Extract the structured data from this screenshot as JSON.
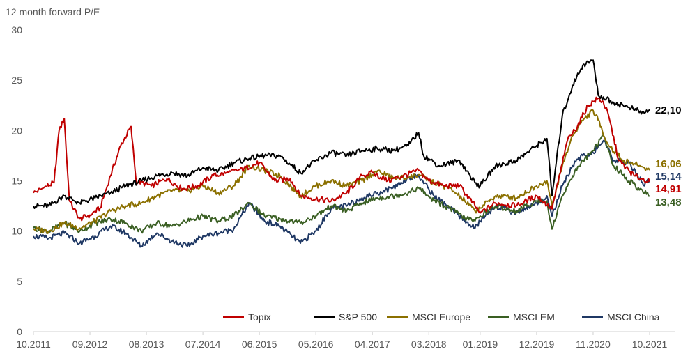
{
  "chart_data": {
    "type": "line",
    "title": "",
    "ylabel": "12 month forward P/E",
    "xlabel": "",
    "ylim": [
      0,
      30
    ],
    "y_ticks": [
      "0",
      "5",
      "10",
      "15",
      "20",
      "25",
      "30"
    ],
    "x_range": [
      "2011-10",
      "2021-10"
    ],
    "x_tick_labels": [
      "10.2011",
      "09.2012",
      "08.2013",
      "07.2014",
      "06.2015",
      "05.2016",
      "04.2017",
      "03.2018",
      "01.2019",
      "12.2019",
      "11.2020",
      "10.2021"
    ],
    "x_tick_dates": [
      "2011-10",
      "2012-09",
      "2013-08",
      "2014-07",
      "2015-06",
      "2016-05",
      "2017-04",
      "2018-03",
      "2019-01",
      "2019-12",
      "2020-11",
      "2021-10"
    ],
    "grid": false,
    "legend_position": "bottom-right",
    "series": [
      {
        "name": "Topix",
        "color": "#c00000",
        "end_label": "14,91",
        "points": [
          [
            "2011-10",
            13.8
          ],
          [
            "2011-12",
            14.3
          ],
          [
            "2012-02",
            14.8
          ],
          [
            "2012-03",
            20.0
          ],
          [
            "2012-04",
            21.2
          ],
          [
            "2012-05",
            13.0
          ],
          [
            "2012-07",
            11.2
          ],
          [
            "2012-09",
            11.6
          ],
          [
            "2012-11",
            12.3
          ],
          [
            "2013-01",
            15.5
          ],
          [
            "2013-03",
            18.5
          ],
          [
            "2013-05",
            20.4
          ],
          [
            "2013-06",
            15.0
          ],
          [
            "2013-09",
            14.5
          ],
          [
            "2013-12",
            15.2
          ],
          [
            "2014-03",
            14.2
          ],
          [
            "2014-06",
            14.5
          ],
          [
            "2014-09",
            15.5
          ],
          [
            "2014-12",
            15.8
          ],
          [
            "2015-03",
            16.2
          ],
          [
            "2015-06",
            16.8
          ],
          [
            "2015-09",
            15.0
          ],
          [
            "2015-12",
            15.2
          ],
          [
            "2016-02",
            13.5
          ],
          [
            "2016-05",
            13.2
          ],
          [
            "2016-08",
            13.0
          ],
          [
            "2016-11",
            13.8
          ],
          [
            "2017-02",
            15.5
          ],
          [
            "2017-04",
            15.8
          ],
          [
            "2017-07",
            15.0
          ],
          [
            "2017-10",
            15.5
          ],
          [
            "2018-01",
            16.0
          ],
          [
            "2018-03",
            15.0
          ],
          [
            "2018-06",
            14.5
          ],
          [
            "2018-09",
            14.5
          ],
          [
            "2018-12",
            12.5
          ],
          [
            "2019-01",
            11.8
          ],
          [
            "2019-04",
            12.8
          ],
          [
            "2019-08",
            12.5
          ],
          [
            "2019-12",
            13.5
          ],
          [
            "2020-03",
            12.2
          ],
          [
            "2020-06",
            19.0
          ],
          [
            "2020-08",
            20.5
          ],
          [
            "2020-10",
            22.5
          ],
          [
            "2020-12",
            23.2
          ],
          [
            "2021-01",
            22.8
          ],
          [
            "2021-02",
            21.5
          ],
          [
            "2021-04",
            17.0
          ],
          [
            "2021-07",
            15.5
          ],
          [
            "2021-10",
            14.91
          ]
        ]
      },
      {
        "name": "S&P 500",
        "color": "#000000",
        "end_label": "22,10",
        "points": [
          [
            "2011-10",
            12.5
          ],
          [
            "2012-01",
            12.5
          ],
          [
            "2012-04",
            13.5
          ],
          [
            "2012-07",
            12.8
          ],
          [
            "2012-10",
            13.3
          ],
          [
            "2013-01",
            13.8
          ],
          [
            "2013-04",
            14.5
          ],
          [
            "2013-07",
            15.0
          ],
          [
            "2013-10",
            15.5
          ],
          [
            "2014-01",
            15.8
          ],
          [
            "2014-04",
            15.5
          ],
          [
            "2014-07",
            16.3
          ],
          [
            "2014-10",
            16.0
          ],
          [
            "2015-01",
            16.8
          ],
          [
            "2015-04",
            17.2
          ],
          [
            "2015-07",
            17.5
          ],
          [
            "2015-10",
            17.5
          ],
          [
            "2016-02",
            15.8
          ],
          [
            "2016-05",
            17.0
          ],
          [
            "2016-08",
            17.8
          ],
          [
            "2016-11",
            17.5
          ],
          [
            "2017-02",
            18.0
          ],
          [
            "2017-05",
            18.2
          ],
          [
            "2017-08",
            18.0
          ],
          [
            "2017-11",
            18.5
          ],
          [
            "2018-01",
            19.8
          ],
          [
            "2018-02",
            17.5
          ],
          [
            "2018-05",
            16.5
          ],
          [
            "2018-09",
            17.0
          ],
          [
            "2018-12",
            14.8
          ],
          [
            "2019-01",
            14.5
          ],
          [
            "2019-04",
            16.5
          ],
          [
            "2019-08",
            17.0
          ],
          [
            "2019-12",
            18.5
          ],
          [
            "2020-02",
            19.2
          ],
          [
            "2020-03",
            13.5
          ],
          [
            "2020-05",
            21.5
          ],
          [
            "2020-07",
            24.5
          ],
          [
            "2020-09",
            26.5
          ],
          [
            "2020-11",
            27.0
          ],
          [
            "2020-12",
            23.5
          ],
          [
            "2021-03",
            22.8
          ],
          [
            "2021-06",
            22.3
          ],
          [
            "2021-09",
            21.7
          ],
          [
            "2021-10",
            22.1
          ]
        ]
      },
      {
        "name": "MSCI Europe",
        "color": "#8b7000",
        "end_label": "16,06",
        "points": [
          [
            "2011-10",
            10.2
          ],
          [
            "2012-01",
            10.0
          ],
          [
            "2012-04",
            10.8
          ],
          [
            "2012-07",
            10.3
          ],
          [
            "2012-10",
            11.0
          ],
          [
            "2013-01",
            12.0
          ],
          [
            "2013-04",
            12.5
          ],
          [
            "2013-07",
            12.8
          ],
          [
            "2013-10",
            13.5
          ],
          [
            "2014-01",
            14.0
          ],
          [
            "2014-04",
            14.0
          ],
          [
            "2014-07",
            14.5
          ],
          [
            "2014-10",
            13.8
          ],
          [
            "2015-01",
            14.5
          ],
          [
            "2015-04",
            16.5
          ],
          [
            "2015-07",
            16.0
          ],
          [
            "2015-10",
            15.5
          ],
          [
            "2016-02",
            13.5
          ],
          [
            "2016-05",
            14.5
          ],
          [
            "2016-08",
            15.0
          ],
          [
            "2016-11",
            14.5
          ],
          [
            "2017-02",
            15.0
          ],
          [
            "2017-05",
            16.0
          ],
          [
            "2017-08",
            15.3
          ],
          [
            "2017-11",
            15.3
          ],
          [
            "2018-01",
            15.6
          ],
          [
            "2018-04",
            14.8
          ],
          [
            "2018-07",
            14.3
          ],
          [
            "2018-10",
            13.0
          ],
          [
            "2018-12",
            12.0
          ],
          [
            "2019-01",
            12.3
          ],
          [
            "2019-04",
            13.5
          ],
          [
            "2019-08",
            13.3
          ],
          [
            "2019-12",
            14.5
          ],
          [
            "2020-02",
            15.0
          ],
          [
            "2020-03",
            12.5
          ],
          [
            "2020-05",
            16.5
          ],
          [
            "2020-07",
            19.5
          ],
          [
            "2020-09",
            21.0
          ],
          [
            "2020-11",
            22.0
          ],
          [
            "2020-12",
            21.0
          ],
          [
            "2021-02",
            18.5
          ],
          [
            "2021-05",
            17.0
          ],
          [
            "2021-08",
            16.5
          ],
          [
            "2021-10",
            16.06
          ]
        ]
      },
      {
        "name": "MSCI EM",
        "color": "#3a5f23",
        "end_label": "13,48",
        "points": [
          [
            "2011-10",
            10.3
          ],
          [
            "2012-01",
            10.0
          ],
          [
            "2012-04",
            10.8
          ],
          [
            "2012-07",
            10.0
          ],
          [
            "2012-10",
            10.8
          ],
          [
            "2013-01",
            11.2
          ],
          [
            "2013-04",
            10.8
          ],
          [
            "2013-07",
            10.0
          ],
          [
            "2013-10",
            10.8
          ],
          [
            "2014-01",
            10.5
          ],
          [
            "2014-04",
            11.0
          ],
          [
            "2014-07",
            11.5
          ],
          [
            "2014-10",
            11.0
          ],
          [
            "2015-01",
            11.5
          ],
          [
            "2015-04",
            12.8
          ],
          [
            "2015-07",
            11.5
          ],
          [
            "2015-10",
            11.2
          ],
          [
            "2016-02",
            10.8
          ],
          [
            "2016-05",
            11.5
          ],
          [
            "2016-08",
            12.5
          ],
          [
            "2016-11",
            12.0
          ],
          [
            "2017-02",
            12.8
          ],
          [
            "2017-05",
            13.3
          ],
          [
            "2017-08",
            13.5
          ],
          [
            "2017-11",
            13.8
          ],
          [
            "2018-01",
            14.3
          ],
          [
            "2018-04",
            13.0
          ],
          [
            "2018-07",
            12.3
          ],
          [
            "2018-10",
            11.3
          ],
          [
            "2018-12",
            11.0
          ],
          [
            "2019-01",
            11.5
          ],
          [
            "2019-04",
            12.5
          ],
          [
            "2019-08",
            12.0
          ],
          [
            "2019-12",
            13.0
          ],
          [
            "2020-02",
            13.0
          ],
          [
            "2020-03",
            10.2
          ],
          [
            "2020-05",
            13.5
          ],
          [
            "2020-07",
            15.5
          ],
          [
            "2020-09",
            17.0
          ],
          [
            "2020-11",
            18.0
          ],
          [
            "2021-01",
            19.5
          ],
          [
            "2021-03",
            16.5
          ],
          [
            "2021-06",
            15.0
          ],
          [
            "2021-09",
            13.8
          ],
          [
            "2021-10",
            13.48
          ]
        ]
      },
      {
        "name": "MSCI China",
        "color": "#1f3864",
        "end_label": "15,14",
        "points": [
          [
            "2011-10",
            9.5
          ],
          [
            "2012-01",
            9.3
          ],
          [
            "2012-04",
            9.8
          ],
          [
            "2012-07",
            8.8
          ],
          [
            "2012-10",
            9.5
          ],
          [
            "2013-01",
            10.5
          ],
          [
            "2013-04",
            9.8
          ],
          [
            "2013-07",
            8.5
          ],
          [
            "2013-10",
            9.8
          ],
          [
            "2014-01",
            9.0
          ],
          [
            "2014-04",
            8.5
          ],
          [
            "2014-07",
            9.5
          ],
          [
            "2014-10",
            9.8
          ],
          [
            "2015-01",
            10.2
          ],
          [
            "2015-04",
            12.8
          ],
          [
            "2015-07",
            11.0
          ],
          [
            "2015-10",
            10.5
          ],
          [
            "2016-02",
            8.8
          ],
          [
            "2016-05",
            10.0
          ],
          [
            "2016-08",
            12.3
          ],
          [
            "2016-11",
            12.5
          ],
          [
            "2017-02",
            13.3
          ],
          [
            "2017-05",
            13.8
          ],
          [
            "2017-08",
            14.3
          ],
          [
            "2017-11",
            15.3
          ],
          [
            "2018-01",
            15.5
          ],
          [
            "2018-04",
            13.5
          ],
          [
            "2018-07",
            12.3
          ],
          [
            "2018-10",
            11.0
          ],
          [
            "2018-12",
            10.3
          ],
          [
            "2019-01",
            11.0
          ],
          [
            "2019-04",
            12.5
          ],
          [
            "2019-08",
            11.8
          ],
          [
            "2019-12",
            12.8
          ],
          [
            "2020-02",
            13.5
          ],
          [
            "2020-03",
            11.5
          ],
          [
            "2020-05",
            14.5
          ],
          [
            "2020-07",
            16.5
          ],
          [
            "2020-09",
            17.5
          ],
          [
            "2020-11",
            17.8
          ],
          [
            "2021-01",
            19.0
          ],
          [
            "2021-03",
            17.0
          ],
          [
            "2021-06",
            16.8
          ],
          [
            "2021-09",
            14.5
          ],
          [
            "2021-10",
            15.14
          ]
        ]
      }
    ]
  }
}
